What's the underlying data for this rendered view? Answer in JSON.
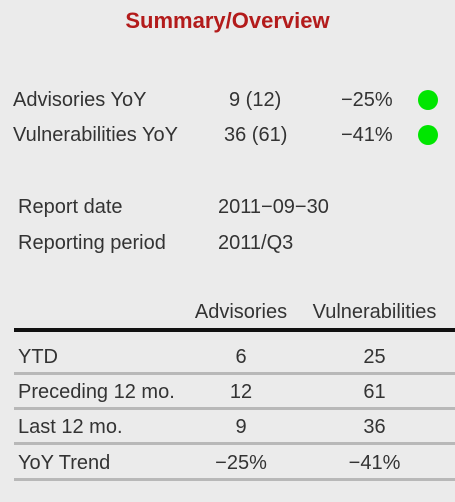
{
  "title": "Summary/Overview",
  "yoy": [
    {
      "label": "Advisories YoY",
      "value": "9 (12)",
      "change": "−25%",
      "status_color": "#00e600"
    },
    {
      "label": "Vulnerabilities YoY",
      "value": "36 (61)",
      "change": "−41%",
      "status_color": "#00e600"
    }
  ],
  "report": {
    "date_label": "Report date",
    "date_value": "2011−09−30",
    "period_label": "Reporting period",
    "period_value": "2011/Q3"
  },
  "table": {
    "headers": [
      "Advisories",
      "Vulnerabilities"
    ],
    "rows": [
      {
        "label": "YTD",
        "advisories": "6",
        "vulnerabilities": "25"
      },
      {
        "label": "Preceding 12 mo.",
        "advisories": "12",
        "vulnerabilities": "61"
      },
      {
        "label": "Last 12 mo.",
        "advisories": "9",
        "vulnerabilities": "36"
      },
      {
        "label": "YoY Trend",
        "advisories": "−25%",
        "vulnerabilities": "−41%"
      }
    ]
  }
}
